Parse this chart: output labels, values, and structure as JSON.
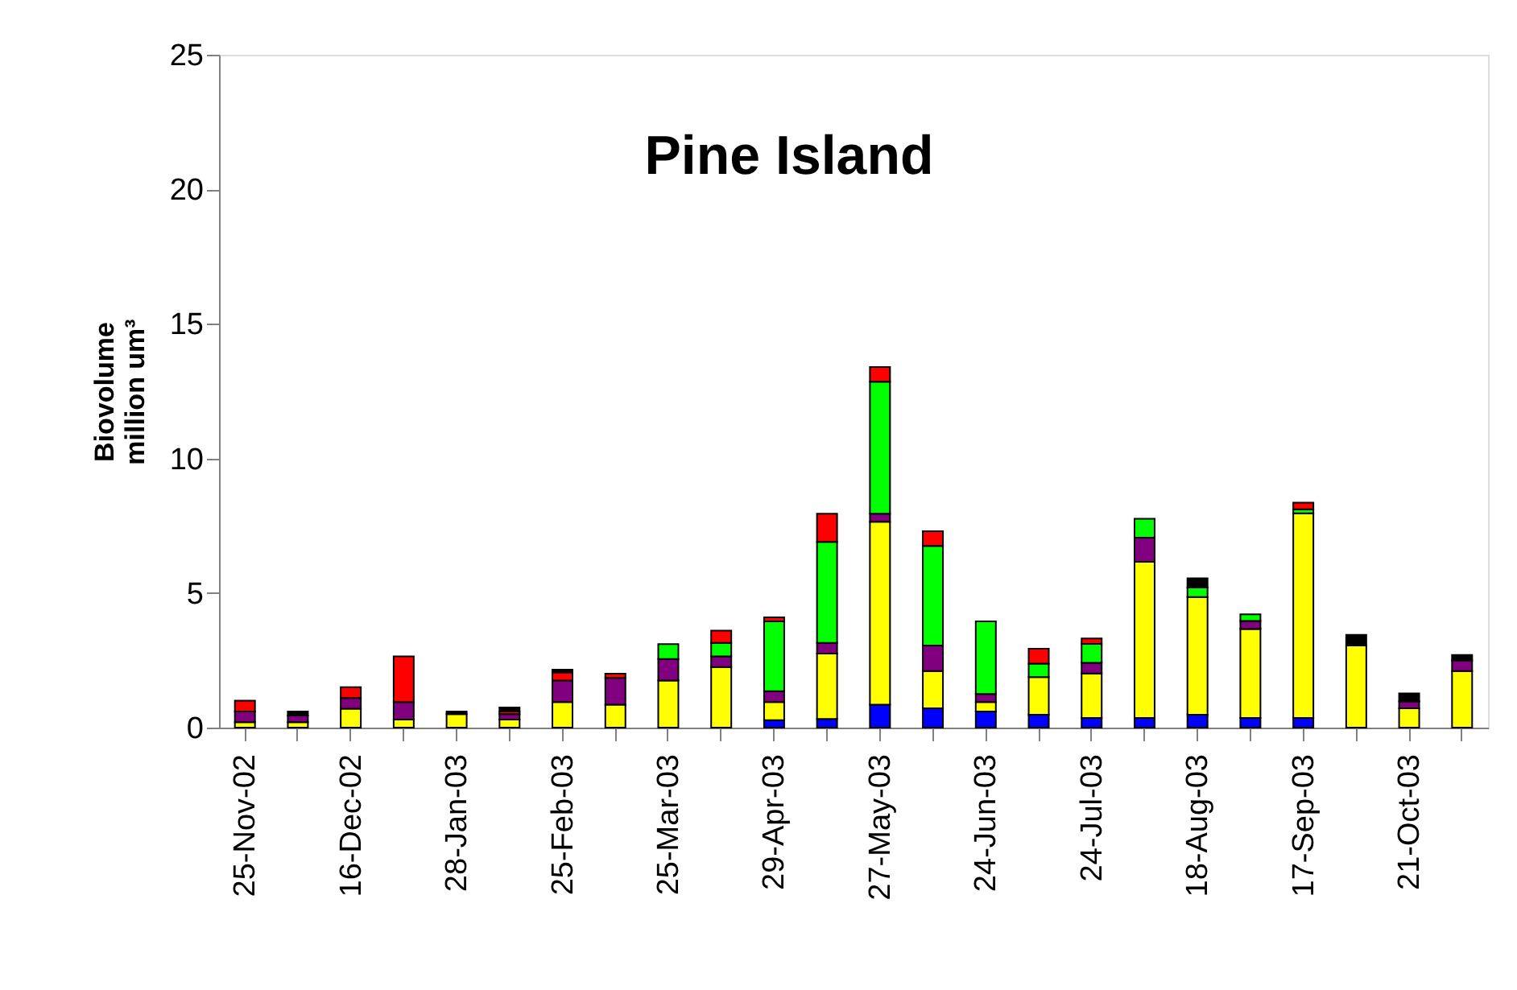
{
  "chart_data": {
    "type": "bar",
    "title": "Pine Island",
    "ylabel": "Biovolume\nmillion um³",
    "stacked": true,
    "grid": false,
    "legend": false,
    "categories": [
      "25-Nov-02",
      null,
      "16-Dec-02",
      null,
      "28-Jan-03",
      null,
      "25-Feb-03",
      null,
      "25-Mar-03",
      null,
      "29-Apr-03",
      null,
      "27-May-03",
      null,
      "24-Jun-03",
      null,
      "24-Jul-03",
      null,
      "18-Aug-03",
      null,
      "17-Sep-03",
      null,
      "21-Oct-03",
      null
    ],
    "ylim": [
      0,
      25
    ],
    "yticks": [
      0,
      5,
      10,
      15,
      20,
      25
    ],
    "series": [
      {
        "color": "#0000ff",
        "values": [
          0,
          0,
          0,
          0,
          0,
          0,
          0,
          0,
          0,
          0,
          0.28,
          0.32,
          0.85,
          0.72,
          0.6,
          0.48,
          0.36,
          0.36,
          0.48,
          0.36,
          0.36,
          0,
          0,
          0
        ]
      },
      {
        "color": "#ffff00",
        "values": [
          0.2,
          0.2,
          0.7,
          0.3,
          0.5,
          0.3,
          0.95,
          0.85,
          1.75,
          2.25,
          0.67,
          2.43,
          6.8,
          1.38,
          0.35,
          1.4,
          1.65,
          5.8,
          4.37,
          3.3,
          7.6,
          3.05,
          0.72,
          2.1
        ]
      },
      {
        "color": "#800080",
        "values": [
          0.4,
          0.25,
          0.4,
          0.65,
          0,
          0.2,
          0.8,
          1.0,
          0.8,
          0.4,
          0.4,
          0.4,
          0.3,
          0.95,
          0.3,
          0,
          0.4,
          0.9,
          0,
          0.3,
          0,
          0,
          0.25,
          0.4
        ]
      },
      {
        "color": "#00ff00",
        "values": [
          0,
          0,
          0,
          0,
          0,
          0,
          0,
          0,
          0.55,
          0.5,
          2.6,
          3.75,
          4.9,
          3.7,
          2.7,
          0.5,
          0.7,
          0.7,
          0.35,
          0.25,
          0.15,
          0,
          0,
          0
        ]
      },
      {
        "color": "#ff0000",
        "values": [
          0.4,
          0,
          0.4,
          1.7,
          0,
          0.1,
          0.3,
          0.15,
          0,
          0.45,
          0.15,
          1.05,
          0.55,
          0.55,
          0,
          0.55,
          0.2,
          0,
          0,
          0,
          0.25,
          0,
          0,
          0
        ]
      },
      {
        "color": "#000000",
        "values": [
          0,
          0.15,
          0,
          0,
          0.1,
          0.15,
          0.1,
          0,
          0,
          0,
          0,
          0,
          0,
          0,
          0,
          0,
          0,
          0,
          0.35,
          0,
          0,
          0.4,
          0.3,
          0.2
        ]
      }
    ]
  }
}
